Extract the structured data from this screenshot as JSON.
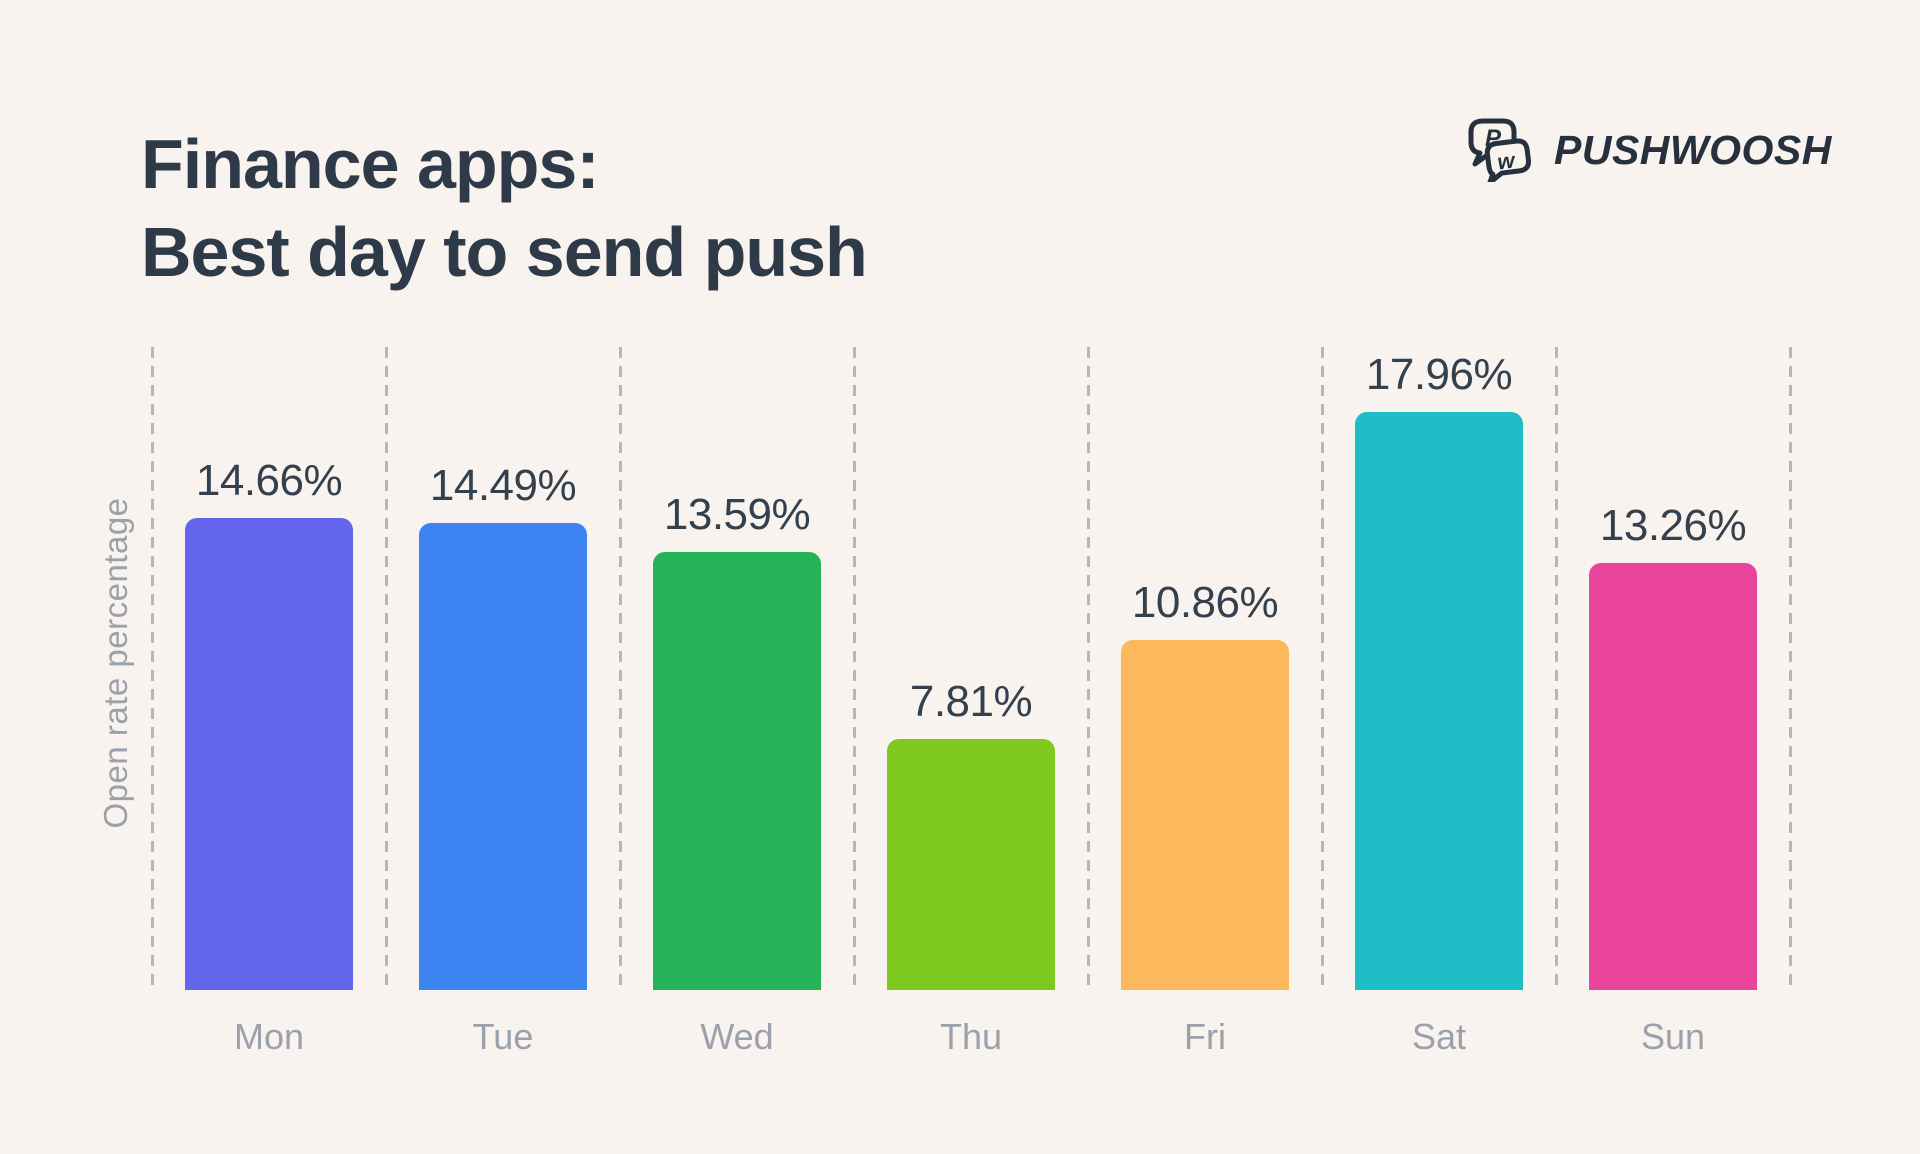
{
  "background_color": "#F8F3EF",
  "title": {
    "line1": "Finance apps:",
    "line2": "Best day to send push",
    "color": "#2F3A49"
  },
  "logo": {
    "text": "PUSHWOOSH",
    "icon": "pushwoosh-chat-bubbles-icon",
    "icon_letters": {
      "back": "P",
      "front": "w"
    },
    "color": "#27313E"
  },
  "axis": {
    "ylabel_color": "#9BA1AB",
    "day_label_color": "#9BA1AB",
    "gridline_color": "#B4B7BF",
    "gridline_style": "dashed-vertical"
  },
  "chart_data": {
    "type": "bar",
    "title": "Finance apps: Best day to send push",
    "categories": [
      "Mon",
      "Tue",
      "Wed",
      "Thu",
      "Fri",
      "Sat",
      "Sun"
    ],
    "values": [
      14.66,
      14.49,
      13.59,
      7.81,
      10.86,
      17.96,
      13.26
    ],
    "value_labels": [
      "14.66%",
      "14.49%",
      "13.59%",
      "7.81%",
      "10.86%",
      "17.96%",
      "13.26%"
    ],
    "bar_colors": [
      "#6366EB",
      "#3D83F2",
      "#24B457",
      "#7FC91E",
      "#FCB95C",
      "#1FBEC7",
      "#E9459A"
    ],
    "xlabel": "",
    "ylabel": "Open rate percentage",
    "ylim": [
      0,
      20
    ],
    "grid": "vertical dashed guides between bars",
    "legend": "none",
    "value_label_position": "above bars"
  }
}
